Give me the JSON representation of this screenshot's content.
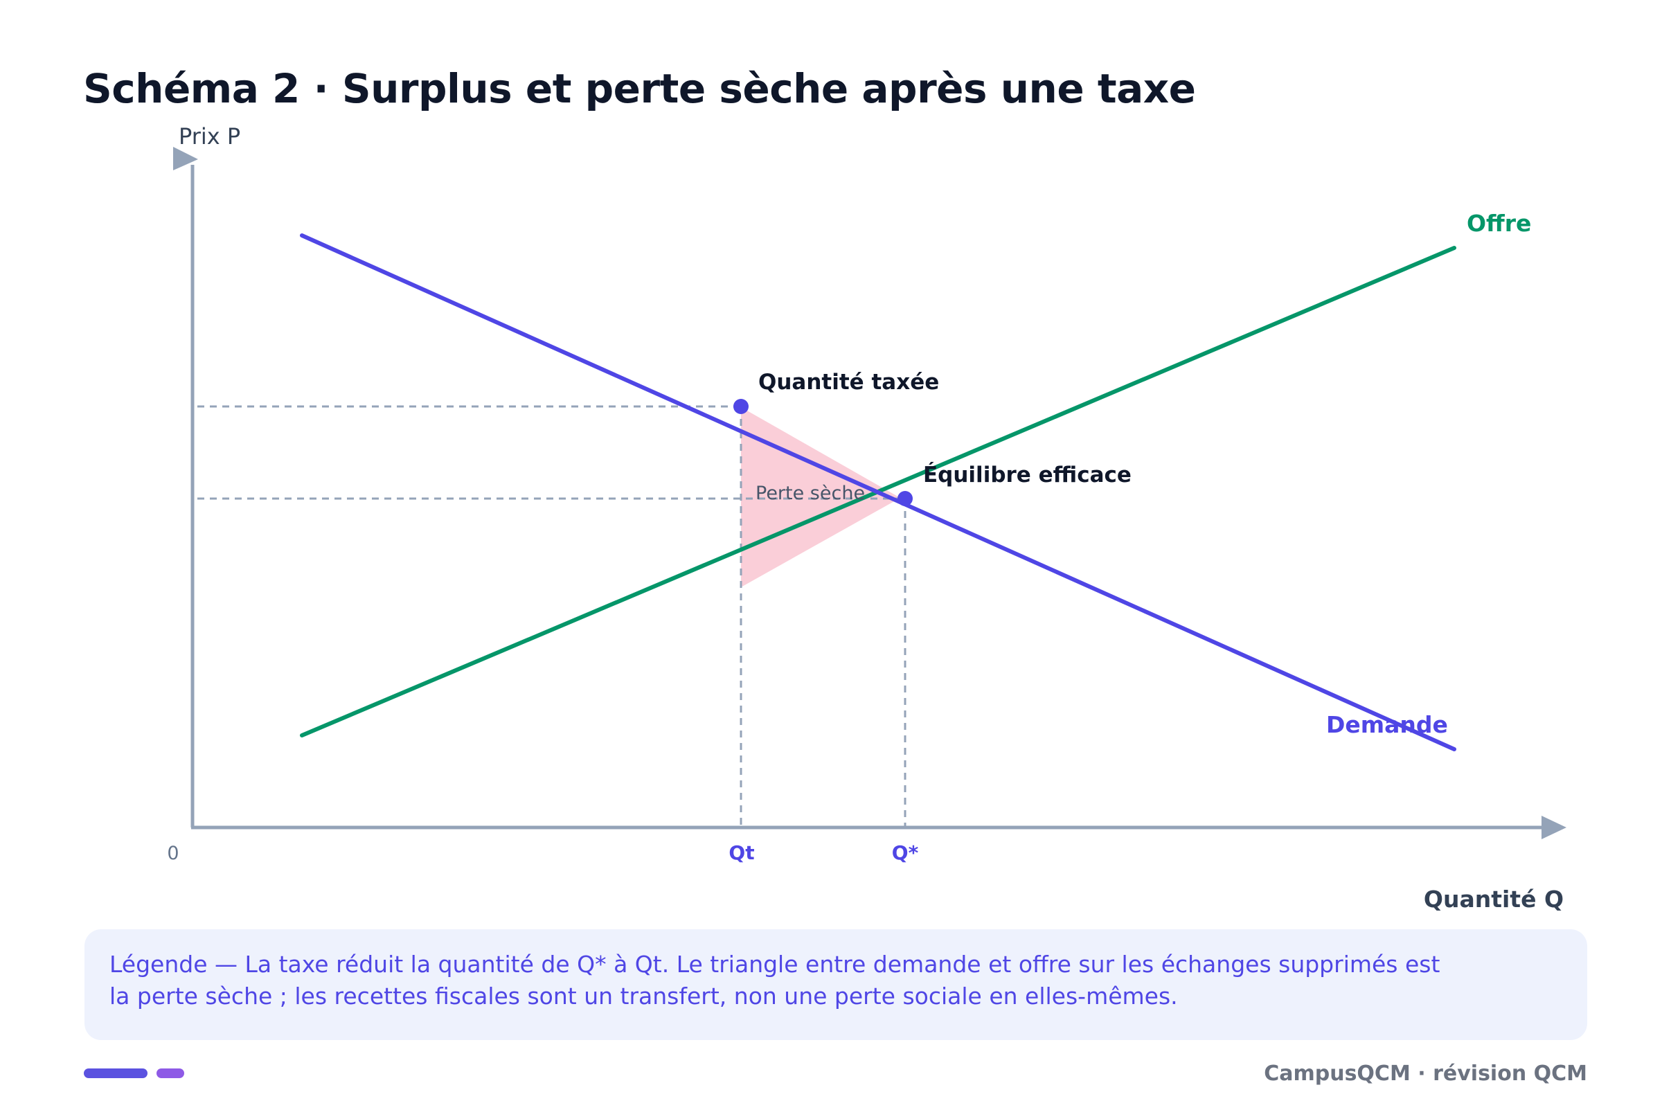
{
  "title": "Schéma 2 · Surplus et perte sèche après une taxe",
  "axes": {
    "y_label": "Prix P",
    "x_label": "Quantité Q",
    "origin_label": "0"
  },
  "curves": {
    "supply_label": "Offre",
    "demand_label": "Demande"
  },
  "points": {
    "taxed_label": "Quantité taxée",
    "equilibrium_label": "Équilibre efficace"
  },
  "ticks": {
    "qt": "Qt",
    "qstar": "Q*"
  },
  "area_label": "Perte sèche",
  "legend": {
    "text": "Légende — La taxe réduit la quantité de Q* à Qt. Le triangle entre demande et offre sur les échanges supprimés est la perte sèche ; les recettes fiscales sont un transfert, non une perte sociale en elles-mêmes."
  },
  "footer": {
    "brand": "CampusQCM · révision QCM"
  },
  "colors": {
    "supply": "#059669",
    "demand": "#4f46e5",
    "deadweight_fill": "#f9c9d4",
    "axis": "#94a3b8",
    "guide": "#94a3b8",
    "point": "#4f46e5",
    "title": "#0f172a"
  }
}
